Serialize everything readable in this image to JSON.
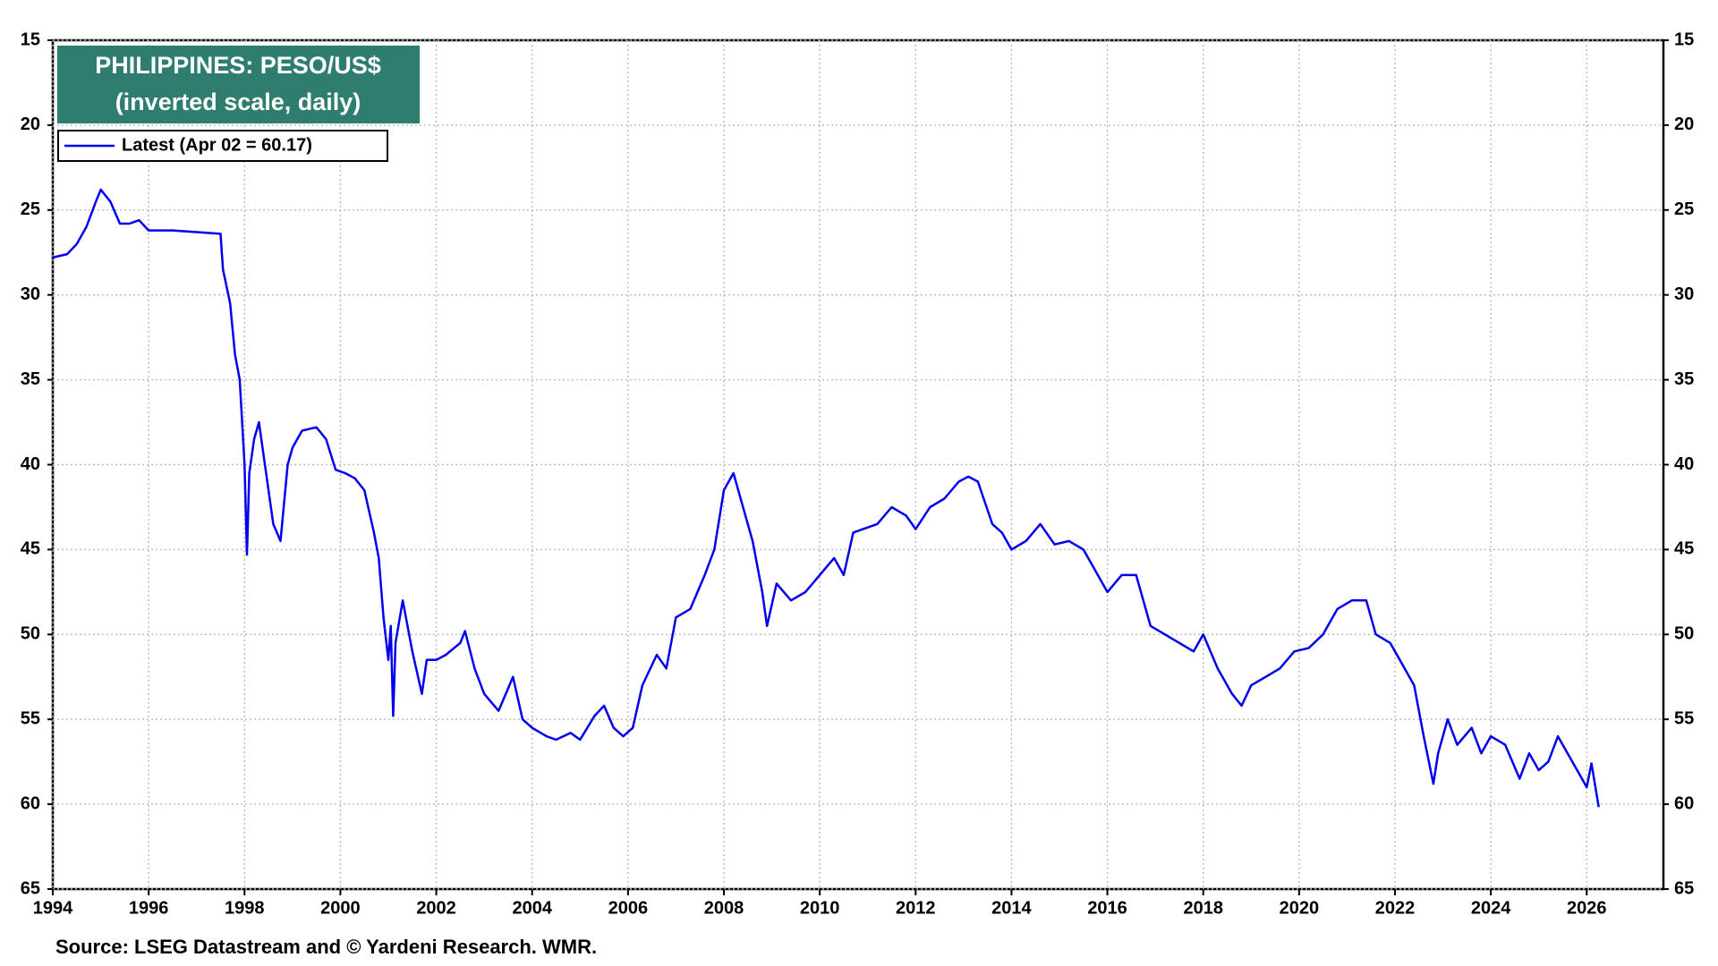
{
  "chart_data": {
    "type": "line",
    "title": "PHILIPPINES: PESO/US$",
    "subtitle": "(inverted scale, daily)",
    "source": "Source: LSEG Datastream and © Yardeni Research. WMR.",
    "inverted_y": true,
    "grid": true,
    "legend": "upper left",
    "title_box_color": "#2e7d6e",
    "xlim": [
      1994,
      2027.6
    ],
    "xticks": [
      1994,
      1996,
      1998,
      2000,
      2002,
      2004,
      2006,
      2008,
      2010,
      2012,
      2014,
      2016,
      2018,
      2020,
      2022,
      2024,
      2026
    ],
    "ylim": [
      15,
      65
    ],
    "yticks": [
      15,
      20,
      25,
      30,
      35,
      40,
      45,
      50,
      55,
      60,
      65
    ],
    "series": [
      {
        "name": "Latest (Apr 02 = 60.17)",
        "color": "#0000ee",
        "x": [
          1994.0,
          1994.3,
          1994.5,
          1994.7,
          1994.9,
          1995.0,
          1995.2,
          1995.4,
          1995.6,
          1995.8,
          1996.0,
          1996.5,
          1997.0,
          1997.5,
          1997.55,
          1997.7,
          1997.8,
          1997.9,
          1998.0,
          1998.05,
          1998.1,
          1998.2,
          1998.3,
          1998.45,
          1998.6,
          1998.75,
          1998.9,
          1999.0,
          1999.2,
          1999.5,
          1999.7,
          1999.9,
          2000.1,
          2000.3,
          2000.5,
          2000.7,
          2000.8,
          2000.9,
          2001.0,
          2001.05,
          2001.1,
          2001.15,
          2001.3,
          2001.5,
          2001.7,
          2001.8,
          2002.0,
          2002.2,
          2002.5,
          2002.6,
          2002.8,
          2003.0,
          2003.3,
          2003.6,
          2003.8,
          2004.0,
          2004.3,
          2004.5,
          2004.8,
          2005.0,
          2005.3,
          2005.5,
          2005.7,
          2005.9,
          2006.1,
          2006.3,
          2006.6,
          2006.8,
          2007.0,
          2007.3,
          2007.6,
          2007.8,
          2008.0,
          2008.2,
          2008.4,
          2008.6,
          2008.8,
          2008.9,
          2009.1,
          2009.4,
          2009.7,
          2010.0,
          2010.3,
          2010.5,
          2010.7,
          2010.9,
          2011.2,
          2011.5,
          2011.8,
          2012.0,
          2012.3,
          2012.6,
          2012.9,
          2013.1,
          2013.3,
          2013.6,
          2013.8,
          2014.0,
          2014.3,
          2014.6,
          2014.9,
          2015.2,
          2015.5,
          2015.8,
          2016.0,
          2016.3,
          2016.6,
          2016.9,
          2017.2,
          2017.5,
          2017.8,
          2018.0,
          2018.3,
          2018.6,
          2018.8,
          2019.0,
          2019.3,
          2019.6,
          2019.9,
          2020.2,
          2020.5,
          2020.8,
          2021.1,
          2021.4,
          2021.6,
          2021.9,
          2022.1,
          2022.4,
          2022.6,
          2022.8,
          2022.9,
          2023.1,
          2023.3,
          2023.6,
          2023.8,
          2024.0,
          2024.3,
          2024.6,
          2024.8,
          2025.0,
          2025.2,
          2025.4,
          2025.6,
          2025.8,
          2026.0,
          2026.1,
          2026.25
        ],
        "values": [
          27.8,
          27.6,
          27.0,
          26.0,
          24.5,
          23.8,
          24.5,
          25.8,
          25.8,
          25.6,
          26.2,
          26.2,
          26.3,
          26.4,
          28.5,
          30.5,
          33.5,
          35.0,
          40.0,
          45.3,
          40.5,
          38.5,
          37.5,
          40.5,
          43.5,
          44.5,
          40.0,
          39.0,
          38.0,
          37.8,
          38.5,
          40.3,
          40.5,
          40.8,
          41.5,
          44.0,
          45.5,
          49.0,
          51.5,
          49.5,
          54.8,
          50.5,
          48.0,
          51.0,
          53.5,
          51.5,
          51.5,
          51.2,
          50.5,
          49.8,
          52.0,
          53.5,
          54.5,
          52.5,
          55.0,
          55.5,
          56.0,
          56.2,
          55.8,
          56.2,
          54.8,
          54.2,
          55.5,
          56.0,
          55.5,
          53.0,
          51.2,
          52.0,
          49.0,
          48.5,
          46.5,
          45.0,
          41.5,
          40.5,
          42.5,
          44.5,
          47.5,
          49.5,
          47.0,
          48.0,
          47.5,
          46.5,
          45.5,
          46.5,
          44.0,
          43.8,
          43.5,
          42.5,
          43.0,
          43.8,
          42.5,
          42.0,
          41.0,
          40.7,
          41.0,
          43.5,
          44.0,
          45.0,
          44.5,
          43.5,
          44.7,
          44.5,
          45.0,
          46.5,
          47.5,
          46.5,
          46.5,
          49.5,
          50.0,
          50.5,
          51.0,
          50.0,
          52.0,
          53.5,
          54.2,
          53.0,
          52.5,
          52.0,
          51.0,
          50.8,
          50.0,
          48.5,
          48.0,
          48.0,
          50.0,
          50.5,
          51.5,
          53.0,
          56.0,
          58.8,
          57.0,
          55.0,
          56.5,
          55.5,
          57.0,
          56.0,
          56.5,
          58.5,
          57.0,
          58.0,
          57.5,
          56.0,
          57.0,
          58.0,
          59.0,
          57.6,
          60.17
        ]
      }
    ]
  }
}
